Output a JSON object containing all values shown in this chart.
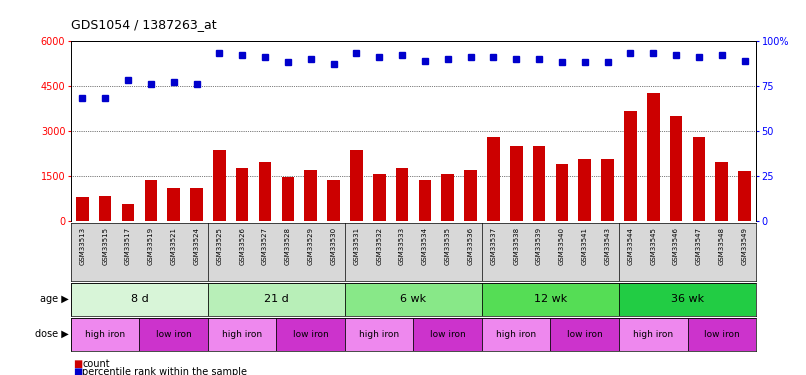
{
  "title": "GDS1054 / 1387263_at",
  "samples": [
    "GSM33513",
    "GSM33515",
    "GSM33517",
    "GSM33519",
    "GSM33521",
    "GSM33524",
    "GSM33525",
    "GSM33526",
    "GSM33527",
    "GSM33528",
    "GSM33529",
    "GSM33530",
    "GSM33531",
    "GSM33532",
    "GSM33533",
    "GSM33534",
    "GSM33535",
    "GSM33536",
    "GSM33537",
    "GSM33538",
    "GSM33539",
    "GSM33540",
    "GSM33541",
    "GSM33543",
    "GSM33544",
    "GSM33545",
    "GSM33546",
    "GSM33547",
    "GSM33548",
    "GSM33549"
  ],
  "counts": [
    800,
    820,
    550,
    1350,
    1100,
    1100,
    2350,
    1750,
    1950,
    1450,
    1700,
    1350,
    2350,
    1550,
    1750,
    1350,
    1550,
    1700,
    2800,
    2500,
    2500,
    1900,
    2050,
    2050,
    3650,
    4250,
    3500,
    2800,
    1950,
    1650
  ],
  "percentiles": [
    68,
    68,
    78,
    76,
    77,
    76,
    93,
    92,
    91,
    88,
    90,
    87,
    93,
    91,
    92,
    89,
    90,
    91,
    91,
    90,
    90,
    88,
    88,
    88,
    93,
    93,
    92,
    91,
    92,
    89
  ],
  "bar_color": "#cc0000",
  "dot_color": "#0000cc",
  "ylim_left": [
    0,
    6000
  ],
  "ylim_right": [
    0,
    100
  ],
  "yticks_left": [
    0,
    1500,
    3000,
    4500,
    6000
  ],
  "yticks_right": [
    0,
    25,
    50,
    75,
    100
  ],
  "age_groups": [
    {
      "label": "8 d",
      "start": 0,
      "end": 6
    },
    {
      "label": "21 d",
      "start": 6,
      "end": 12
    },
    {
      "label": "6 wk",
      "start": 12,
      "end": 18
    },
    {
      "label": "12 wk",
      "start": 18,
      "end": 24
    },
    {
      "label": "36 wk",
      "start": 24,
      "end": 30
    }
  ],
  "age_colors": [
    "#d8f5d8",
    "#b8efb8",
    "#88e888",
    "#55dd55",
    "#22cc44"
  ],
  "dose_groups": [
    {
      "label": "high iron",
      "start": 0,
      "end": 3
    },
    {
      "label": "low iron",
      "start": 3,
      "end": 6
    },
    {
      "label": "high iron",
      "start": 6,
      "end": 9
    },
    {
      "label": "low iron",
      "start": 9,
      "end": 12
    },
    {
      "label": "high iron",
      "start": 12,
      "end": 15
    },
    {
      "label": "low iron",
      "start": 15,
      "end": 18
    },
    {
      "label": "high iron",
      "start": 18,
      "end": 21
    },
    {
      "label": "low iron",
      "start": 21,
      "end": 24
    },
    {
      "label": "high iron",
      "start": 24,
      "end": 27
    },
    {
      "label": "low iron",
      "start": 27,
      "end": 30
    }
  ],
  "high_iron_color": "#ee88ee",
  "low_iron_color": "#cc33cc",
  "bar_color_legend": "#cc0000",
  "dot_color_legend": "#0000cc"
}
